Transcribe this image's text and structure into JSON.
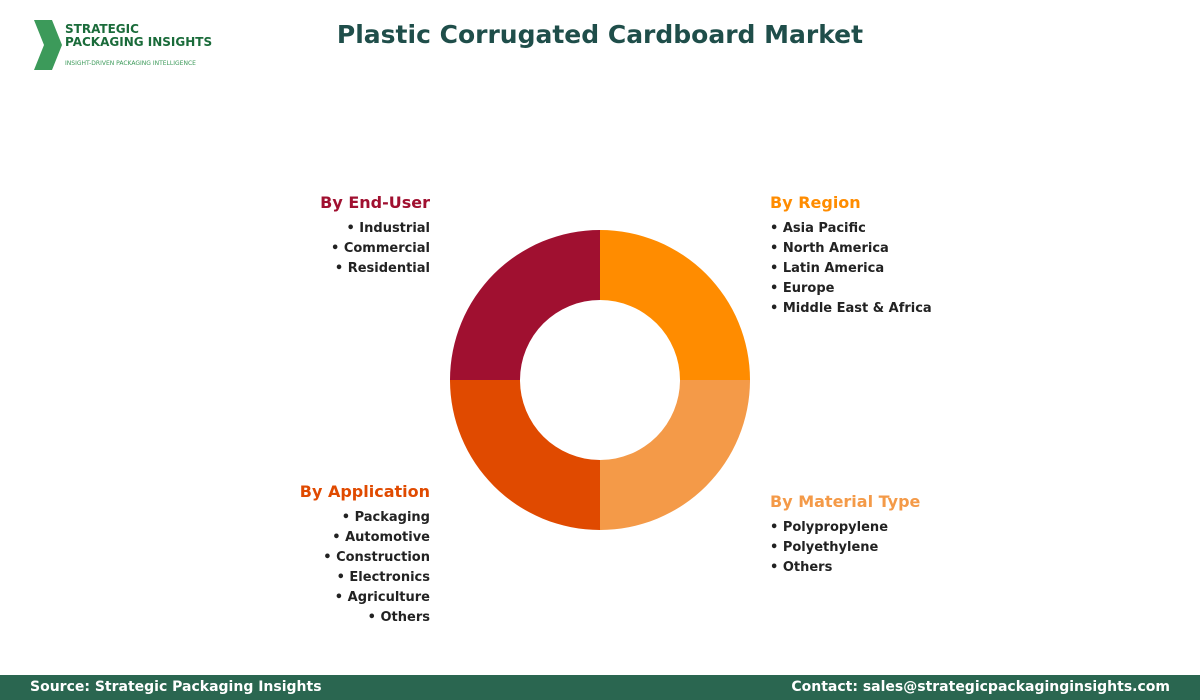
{
  "logo": {
    "line1": "STRATEGIC",
    "line2": "PACKAGING INSIGHTS",
    "tagline": "INSIGHT-DRIVEN PACKAGING INTELLIGENCE"
  },
  "title": "Plastic Corrugated Cardboard Market",
  "segments": [
    {
      "heading": "By End-User",
      "items": [
        "Industrial",
        "Commercial",
        "Residential"
      ]
    },
    {
      "heading": "By Region",
      "items": [
        "Asia Pacific",
        "North America",
        "Latin America",
        "Europe",
        "Middle East & Africa"
      ]
    },
    {
      "heading": "By Application",
      "items": [
        "Packaging",
        "Automotive",
        "Construction",
        "Electronics",
        "Agriculture",
        "Others"
      ]
    },
    {
      "heading": "By Material Type",
      "items": [
        "Polypropylene",
        "Polyethylene",
        "Others"
      ]
    }
  ],
  "footer": {
    "source": "Source: Strategic Packaging Insights",
    "contact": "Contact: sales@strategicpackaginginsights.com"
  }
}
